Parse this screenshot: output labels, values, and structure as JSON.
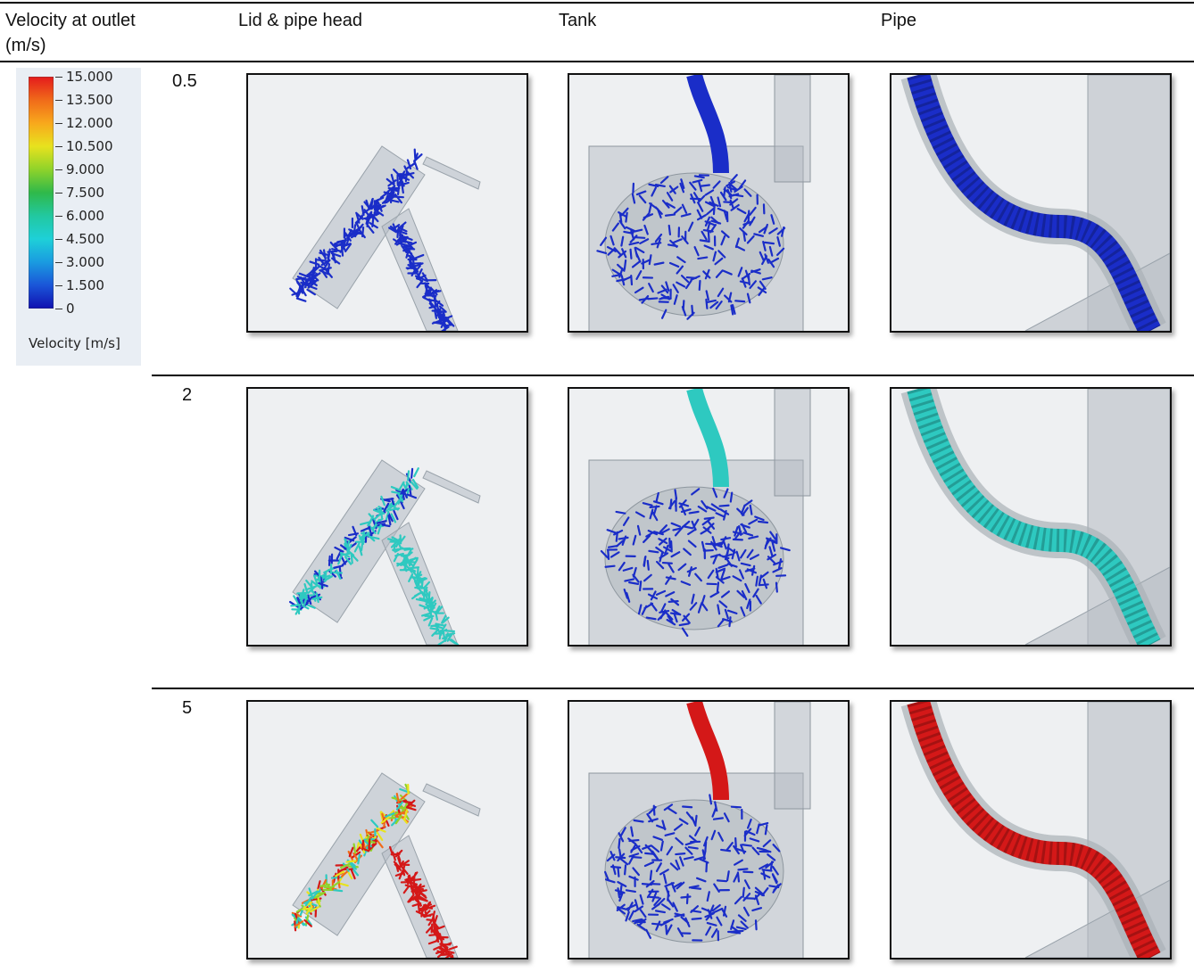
{
  "header": {
    "col0": "Velocity at outlet",
    "col0_unit": "(m/s)",
    "col1": "Lid & pipe head",
    "col2": "Tank",
    "col3": "Pipe"
  },
  "legend": {
    "ticks": [
      "15.000",
      "13.500",
      "12.000",
      "10.500",
      "9.000",
      "7.500",
      "6.000",
      "4.500",
      "3.000",
      "1.500",
      "0"
    ],
    "title": "Velocity [m/s]",
    "colors": [
      "#e41a1c",
      "#f06a1a",
      "#f8a81c",
      "#e8e21e",
      "#8fd32a",
      "#2fb94a",
      "#22c8a0",
      "#1ed0d8",
      "#1a9be0",
      "#1a55d8",
      "#1010b0"
    ]
  },
  "rows": [
    {
      "label": "0.5",
      "color": "#1a2dc8"
    },
    {
      "label": "2",
      "color": "#2ec9c0"
    },
    {
      "label": "5",
      "color": "#d41818"
    }
  ],
  "images": {
    "lid": "lid-and-pipe-head-velocity-render",
    "tank": "tank-velocity-render",
    "pipe": "pipe-velocity-render"
  }
}
